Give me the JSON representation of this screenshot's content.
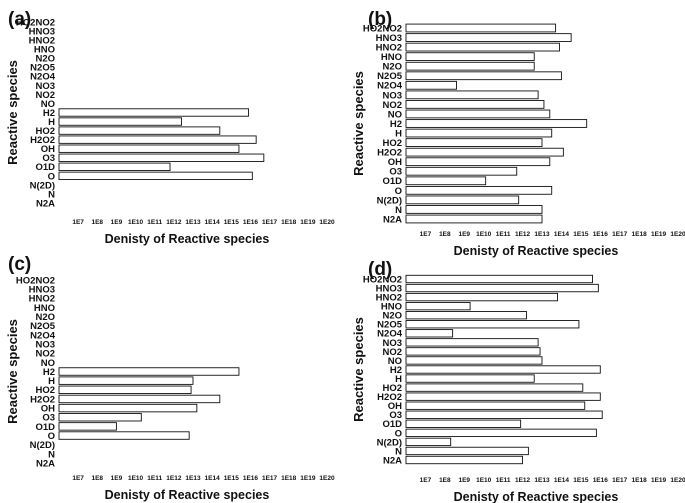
{
  "chart_data": [
    {
      "type": "bar",
      "orientation": "horizontal",
      "panel_label": "(a)",
      "xlabel": "Denisty of Reactive species",
      "ylabel": "Reactive species",
      "xscale": "log",
      "xlim_exponent": [
        6,
        20
      ],
      "xtick_labels": [
        "1E7",
        "1E8",
        "1E9",
        "1E10",
        "1E11",
        "1E12",
        "1E13",
        "1E14",
        "1E15",
        "1E16",
        "1E17",
        "1E18",
        "1E19",
        "1E20"
      ],
      "categories": [
        "HO2NO2",
        "HNO3",
        "HNO2",
        "HNO",
        "N2O",
        "N2O5",
        "N2O4",
        "NO3",
        "NO2",
        "NO",
        "H2",
        "H",
        "HO2",
        "H2O2",
        "OH",
        "O3",
        "O1D",
        "O",
        "N(2D)",
        "N",
        "N2A"
      ],
      "values_log10": [
        null,
        null,
        null,
        null,
        null,
        null,
        null,
        null,
        null,
        null,
        15.9,
        12.4,
        14.4,
        16.3,
        15.4,
        16.7,
        11.8,
        16.1,
        null,
        null,
        null
      ]
    },
    {
      "type": "bar",
      "orientation": "horizontal",
      "panel_label": "(b)",
      "xlabel": "Denisty of Reactive species",
      "ylabel": "Reactive species",
      "xscale": "log",
      "xlim_exponent": [
        6,
        20
      ],
      "xtick_labels": [
        "1E7",
        "1E8",
        "1E9",
        "1E10",
        "1E11",
        "1E12",
        "1E13",
        "1E14",
        "1E15",
        "1E16",
        "1E17",
        "1E18",
        "1E19",
        "1E20"
      ],
      "categories": [
        "HO2NO2",
        "HNO3",
        "HNO2",
        "HNO",
        "N2O",
        "N2O5",
        "N2O4",
        "NO3",
        "NO2",
        "NO",
        "H2",
        "H",
        "HO2",
        "H2O2",
        "OH",
        "O3",
        "O1D",
        "O",
        "N(2D)",
        "N",
        "N2A"
      ],
      "values_log10": [
        13.7,
        14.5,
        13.9,
        12.6,
        12.6,
        14.0,
        8.6,
        12.8,
        13.1,
        13.4,
        15.3,
        13.5,
        13.0,
        14.1,
        13.4,
        11.7,
        10.1,
        13.5,
        11.8,
        13.0,
        13.0
      ]
    },
    {
      "type": "bar",
      "orientation": "horizontal",
      "panel_label": "(c)",
      "xlabel": "Denisty of Reactive species",
      "ylabel": "Reactive species",
      "xscale": "log",
      "xlim_exponent": [
        6,
        20
      ],
      "xtick_labels": [
        "1E7",
        "1E8",
        "1E9",
        "1E10",
        "1E11",
        "1E12",
        "1E13",
        "1E14",
        "1E15",
        "1E16",
        "1E17",
        "1E18",
        "1E19",
        "1E20"
      ],
      "categories": [
        "HO2NO2",
        "HNO3",
        "HNO2",
        "HNO",
        "N2O",
        "N2O5",
        "N2O4",
        "NO3",
        "NO2",
        "NO",
        "H2",
        "H",
        "HO2",
        "H2O2",
        "OH",
        "O3",
        "O1D",
        "O",
        "N(2D)",
        "N",
        "N2A"
      ],
      "values_log10": [
        null,
        null,
        null,
        null,
        null,
        null,
        null,
        null,
        null,
        null,
        15.4,
        13.0,
        12.9,
        14.4,
        13.2,
        10.3,
        9.0,
        12.8,
        null,
        null,
        null
      ]
    },
    {
      "type": "bar",
      "orientation": "horizontal",
      "panel_label": "(d)",
      "xlabel": "Denisty of Reactive species",
      "ylabel": "Reactive species",
      "xscale": "log",
      "xlim_exponent": [
        6,
        20
      ],
      "xtick_labels": [
        "1E7",
        "1E8",
        "1E9",
        "1E10",
        "1E11",
        "1E12",
        "1E13",
        "1E14",
        "1E15",
        "1E16",
        "1E17",
        "1E18",
        "1E19",
        "1E20"
      ],
      "categories": [
        "HO2NO2",
        "HNO3",
        "HNO2",
        "HNO",
        "N2O",
        "N2O5",
        "N2O4",
        "NO3",
        "NO2",
        "NO",
        "H2",
        "H",
        "HO2",
        "H2O2",
        "OH",
        "O3",
        "O1D",
        "O",
        "N(2D)",
        "N",
        "N2A"
      ],
      "values_log10": [
        15.6,
        15.9,
        13.8,
        9.3,
        12.2,
        14.9,
        8.4,
        12.8,
        12.9,
        13.0,
        16.0,
        12.6,
        15.1,
        16.0,
        15.2,
        16.1,
        11.9,
        15.8,
        8.3,
        12.3,
        12.0
      ]
    }
  ]
}
